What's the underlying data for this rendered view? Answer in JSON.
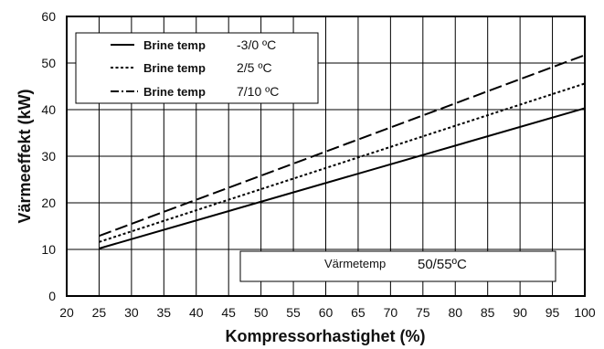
{
  "chart_data": {
    "type": "line",
    "xlabel": "Kompressorhastighet (%)",
    "ylabel": "Värmeeffekt (kW)",
    "xlim": [
      20,
      100
    ],
    "ylim": [
      0,
      60
    ],
    "xticks": [
      20,
      25,
      30,
      35,
      40,
      45,
      50,
      55,
      60,
      65,
      70,
      75,
      80,
      85,
      90,
      95,
      100
    ],
    "yticks": [
      0,
      10,
      20,
      30,
      40,
      50,
      60
    ],
    "grid": true,
    "legend_position": "top-left",
    "series": [
      {
        "name": "Brine temp",
        "range": "-3/0 ºC",
        "style": "solid",
        "x": [
          25,
          100
        ],
        "y": [
          10.2,
          40.3
        ]
      },
      {
        "name": "Brine temp",
        "range": "2/5 ºC",
        "style": "dotted",
        "x": [
          25,
          100
        ],
        "y": [
          11.6,
          45.6
        ]
      },
      {
        "name": "Brine temp",
        "range": "7/10 ºC",
        "style": "dashed",
        "x": [
          25,
          100
        ],
        "y": [
          12.9,
          51.7
        ]
      }
    ],
    "annotation": {
      "label": "Värmetemp",
      "value": "50/55ºC"
    }
  }
}
